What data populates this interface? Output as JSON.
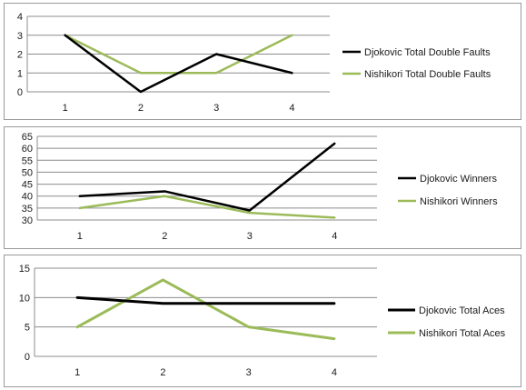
{
  "chart_data": [
    {
      "type": "line",
      "categories": [
        "1",
        "2",
        "3",
        "4"
      ],
      "series": [
        {
          "name": "Djokovic Total Double Faults",
          "values": [
            3,
            0,
            2,
            1
          ],
          "color": "#000000"
        },
        {
          "name": "Nishikori Total Double Faults",
          "values": [
            3,
            1,
            1,
            3
          ],
          "color": "#9bbb59"
        }
      ],
      "ylim": [
        0,
        4
      ],
      "yticks": [
        "0",
        "1",
        "2",
        "3",
        "4"
      ],
      "grid": true,
      "legend": "right"
    },
    {
      "type": "line",
      "categories": [
        "1",
        "2",
        "3",
        "4"
      ],
      "series": [
        {
          "name": "Djokovic Winners",
          "values": [
            40,
            42,
            34,
            62
          ],
          "color": "#000000"
        },
        {
          "name": "Nishikori Winners",
          "values": [
            35,
            40,
            33,
            31
          ],
          "color": "#9bbb59"
        }
      ],
      "ylim": [
        30,
        65
      ],
      "yticks": [
        "30",
        "35",
        "40",
        "45",
        "50",
        "55",
        "60",
        "65"
      ],
      "grid": true,
      "legend": "right"
    },
    {
      "type": "line",
      "categories": [
        "1",
        "2",
        "3",
        "4"
      ],
      "series": [
        {
          "name": "Djokovic Total Aces",
          "values": [
            10,
            9,
            9,
            9
          ],
          "color": "#000000"
        },
        {
          "name": "Nishikori Total Aces",
          "values": [
            5,
            13,
            5,
            3
          ],
          "color": "#9bbb59"
        }
      ],
      "ylim": [
        0,
        15
      ],
      "yticks": [
        "0",
        "5",
        "10",
        "15"
      ],
      "grid": true,
      "legend": "right"
    }
  ]
}
